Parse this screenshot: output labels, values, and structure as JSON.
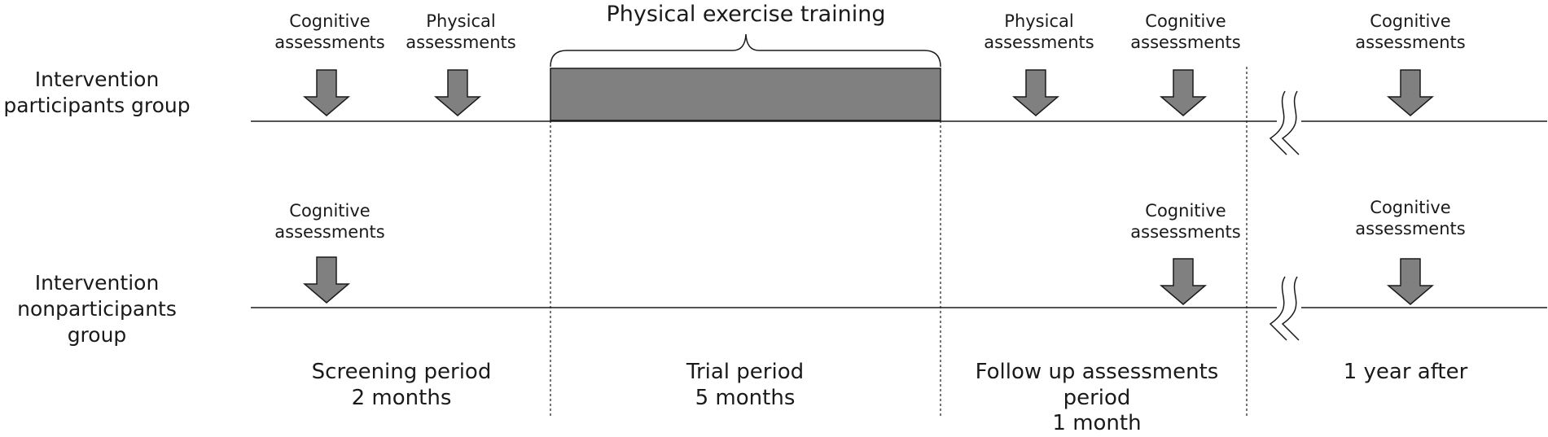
{
  "title": "Physical exercise training",
  "groups": {
    "intervention": {
      "line1": "Intervention",
      "line2": "participants group"
    },
    "nonintervention": {
      "line1": "Intervention",
      "line2": "nonparticipants",
      "line3": "group"
    }
  },
  "assessments": {
    "cognitive": {
      "line1": "Cognitive",
      "line2": "assessments"
    },
    "physical": {
      "line1": "Physical",
      "line2": "assessments"
    }
  },
  "periods": {
    "screening": {
      "line1": "Screening period",
      "line2": "2 months"
    },
    "trial": {
      "line1": "Trial period",
      "line2": "5 months"
    },
    "followup": {
      "line1": "Follow up assessments",
      "line2": "period",
      "line3": "1 month"
    },
    "after": {
      "line1": "1 year after"
    }
  },
  "colors": {
    "arrow_fill": "#808080",
    "bar_fill": "#808080",
    "stroke": "#1a1a1a"
  },
  "icons": [
    "down-arrow-icon",
    "time-break-icon",
    "curly-brace-icon"
  ]
}
